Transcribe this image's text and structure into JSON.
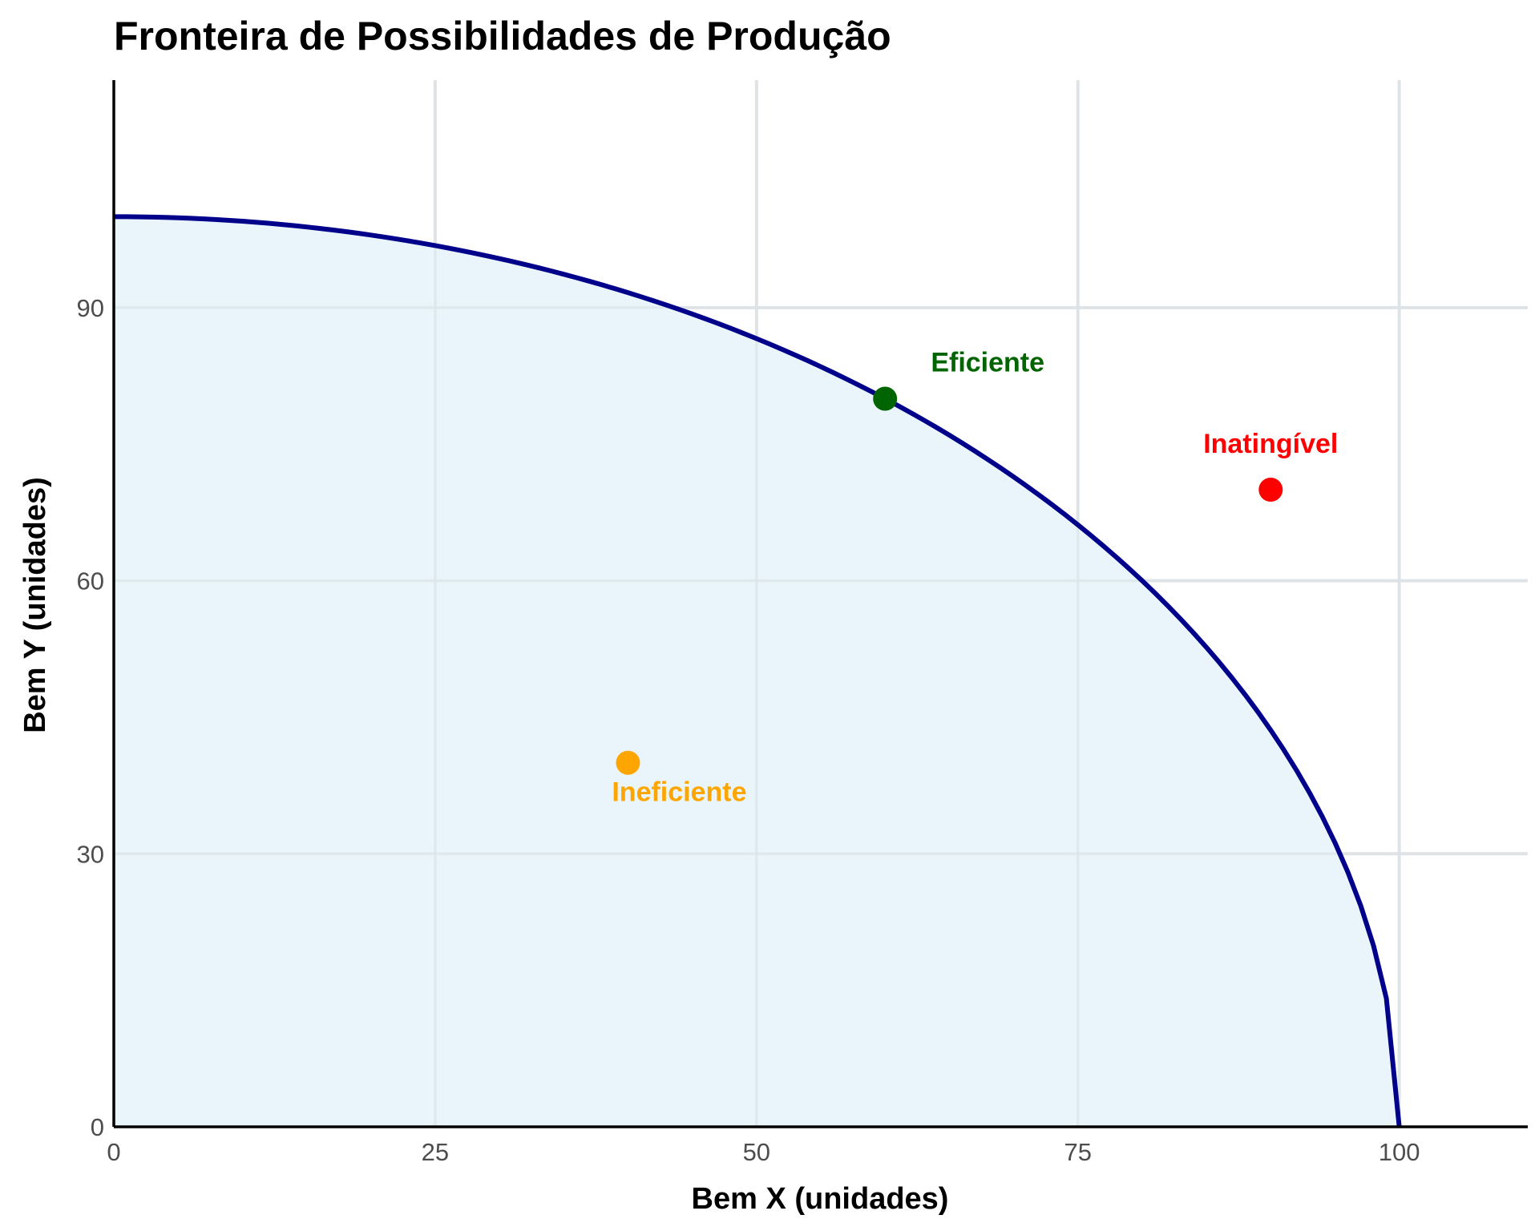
{
  "chart_data": {
    "type": "line",
    "title": "Fronteira de Possibilidades de Produção",
    "xlabel": "Bem X (unidades)",
    "ylabel": "Bem Y (unidades)",
    "xlim": [
      0,
      110
    ],
    "ylim": [
      0,
      115
    ],
    "x_ticks": [
      0,
      25,
      50,
      75,
      100
    ],
    "y_ticks": [
      0,
      30,
      60,
      90
    ],
    "grid": true,
    "frontier": {
      "x_intercept": 100,
      "y_intercept": 100,
      "shape": "quarter-circle",
      "line_color": "#00008b",
      "fill_color": "#e5f3f9"
    },
    "points": [
      {
        "label": "Eficiente",
        "x": 60,
        "y": 80,
        "color": "#006400"
      },
      {
        "label": "Inatingível",
        "x": 90,
        "y": 70,
        "color": "#ff0000"
      },
      {
        "label": "Ineficiente",
        "x": 40,
        "y": 40,
        "color": "#ffa500"
      }
    ]
  }
}
